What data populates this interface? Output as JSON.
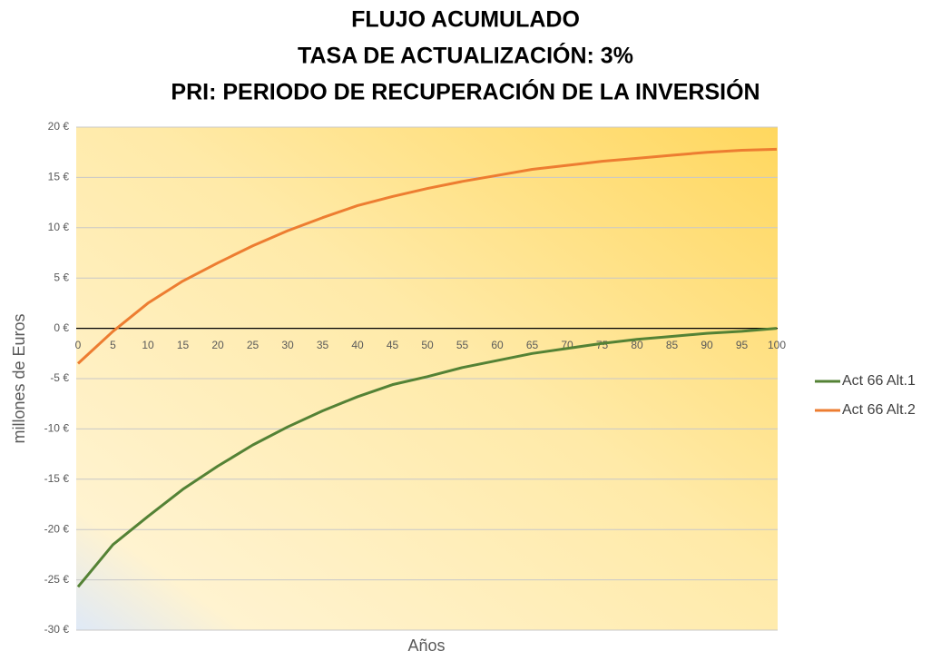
{
  "chart_data": {
    "type": "line",
    "title": [
      "FLUJO ACUMULADO",
      "TASA DE ACTUALIZACIÓN: 3%",
      "PRI: PERIODO DE RECUPERACIÓN DE LA INVERSIÓN"
    ],
    "xlabel": "Años",
    "ylabel": "millones de Euros",
    "x": [
      0,
      5,
      10,
      15,
      20,
      25,
      30,
      35,
      40,
      45,
      50,
      55,
      60,
      65,
      70,
      75,
      80,
      85,
      90,
      95,
      100
    ],
    "series": [
      {
        "name": "Act 66 Alt.1",
        "color": "#548235",
        "values": [
          -25.7,
          -21.5,
          -18.7,
          -16,
          -13.7,
          -11.6,
          -9.8,
          -8.2,
          -6.8,
          -5.6,
          -4.8,
          -3.9,
          -3.2,
          -2.5,
          -2.0,
          -1.5,
          -1.1,
          -0.8,
          -0.5,
          -0.3,
          0
        ]
      },
      {
        "name": "Act 66 Alt.2",
        "color": "#ed7d31",
        "values": [
          -3.5,
          -0.3,
          2.5,
          4.7,
          6.5,
          8.2,
          9.7,
          11.0,
          12.2,
          13.1,
          13.9,
          14.6,
          15.2,
          15.8,
          16.2,
          16.6,
          16.9,
          17.2,
          17.5,
          17.7,
          17.8
        ]
      }
    ],
    "xlim": [
      0,
      100
    ],
    "xticks": [
      0,
      5,
      10,
      15,
      20,
      25,
      30,
      35,
      40,
      45,
      50,
      55,
      60,
      65,
      70,
      75,
      80,
      85,
      90,
      95,
      100
    ],
    "ylim": [
      -30,
      20
    ],
    "yticks": [
      {
        "value": -30,
        "label": "-30 €"
      },
      {
        "value": -25,
        "label": "-25 €"
      },
      {
        "value": -20,
        "label": "-20 €"
      },
      {
        "value": -15,
        "label": "-15 €"
      },
      {
        "value": -10,
        "label": "-10 €"
      },
      {
        "value": -5,
        "label": "-5 €"
      },
      {
        "value": 0,
        "label": "0 €"
      },
      {
        "value": 5,
        "label": "5 €"
      },
      {
        "value": 10,
        "label": "10 €"
      },
      {
        "value": 15,
        "label": "15 €"
      },
      {
        "value": 20,
        "label": "20 €"
      }
    ],
    "grid": true,
    "legend": "right"
  }
}
